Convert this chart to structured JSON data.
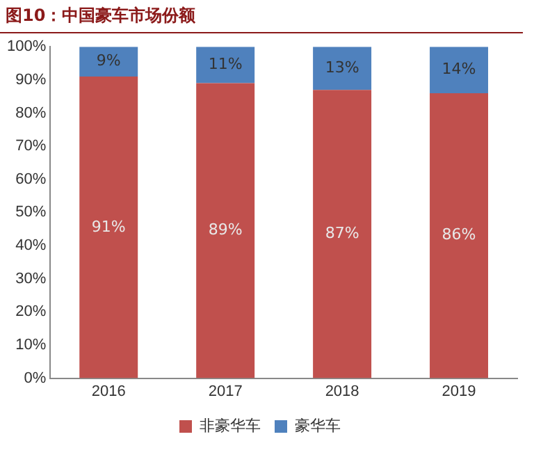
{
  "chart_data": {
    "type": "bar",
    "title": "图10：中国豪车市场份额",
    "categories": [
      "2016",
      "2017",
      "2018",
      "2019"
    ],
    "stacked": true,
    "series": [
      {
        "name": "非豪华车",
        "color": "#c0504d",
        "values": [
          91,
          89,
          87,
          86
        ],
        "value_labels": [
          "91%",
          "89%",
          "87%",
          "86%"
        ]
      },
      {
        "name": "豪华车",
        "color": "#4f81bd",
        "values": [
          9,
          11,
          13,
          14
        ],
        "value_labels": [
          "9%",
          "11%",
          "13%",
          "14%"
        ]
      }
    ],
    "ylim": [
      0,
      100
    ],
    "yticks": [
      {
        "value": 0,
        "label": "0%"
      },
      {
        "value": 10,
        "label": "10%"
      },
      {
        "value": 20,
        "label": "20%"
      },
      {
        "value": 30,
        "label": "30%"
      },
      {
        "value": 40,
        "label": "40%"
      },
      {
        "value": 50,
        "label": "50%"
      },
      {
        "value": 60,
        "label": "60%"
      },
      {
        "value": 70,
        "label": "70%"
      },
      {
        "value": 80,
        "label": "80%"
      },
      {
        "value": 90,
        "label": "90%"
      },
      {
        "value": 100,
        "label": "100%"
      }
    ],
    "grid": false,
    "legend": "bottom"
  }
}
